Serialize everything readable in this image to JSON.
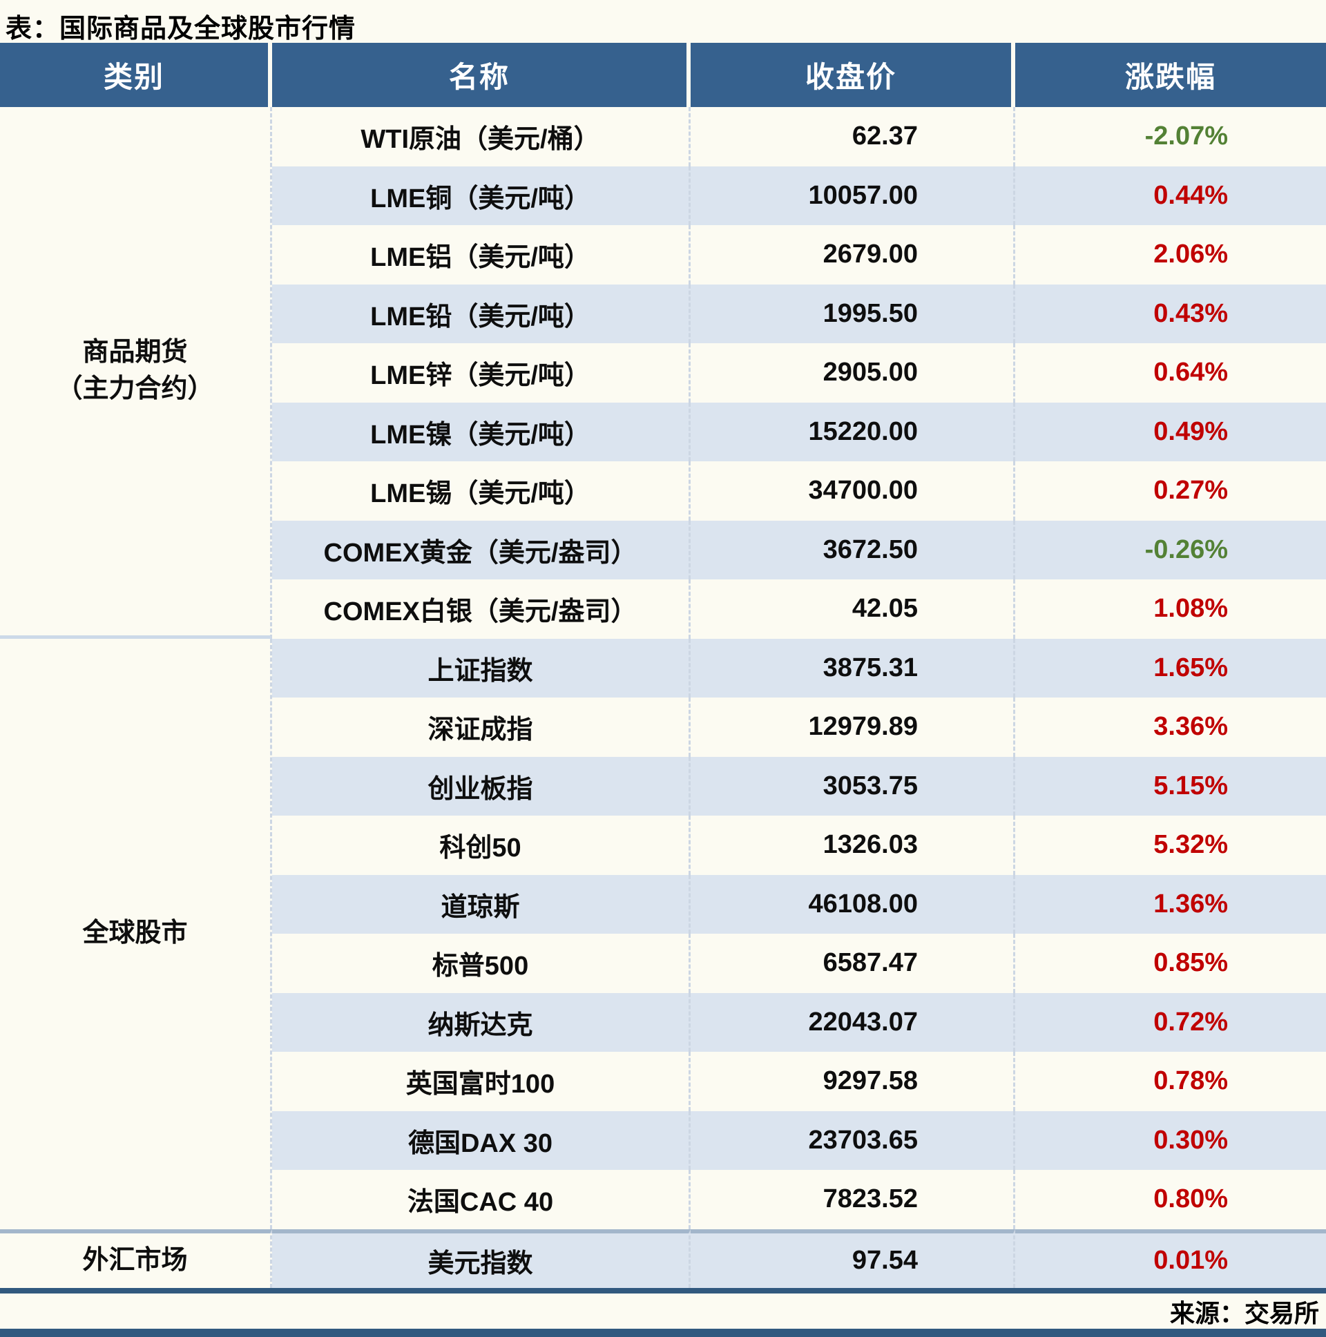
{
  "title": "表：国际商品及全球股市行情",
  "columns": [
    "类别",
    "名称",
    "收盘价",
    "涨跌幅"
  ],
  "sections": [
    {
      "label_lines": [
        "商品期货",
        "（主力合约）"
      ],
      "rows": [
        {
          "name": "WTI原油（美元/桶）",
          "close": "62.37",
          "change": "-2.07%",
          "dir": "down"
        },
        {
          "name": "LME铜（美元/吨）",
          "close": "10057.00",
          "change": "0.44%",
          "dir": "up"
        },
        {
          "name": "LME铝（美元/吨）",
          "close": "2679.00",
          "change": "2.06%",
          "dir": "up"
        },
        {
          "name": "LME铅（美元/吨）",
          "close": "1995.50",
          "change": "0.43%",
          "dir": "up"
        },
        {
          "name": "LME锌（美元/吨）",
          "close": "2905.00",
          "change": "0.64%",
          "dir": "up"
        },
        {
          "name": "LME镍（美元/吨）",
          "close": "15220.00",
          "change": "0.49%",
          "dir": "up"
        },
        {
          "name": "LME锡（美元/吨）",
          "close": "34700.00",
          "change": "0.27%",
          "dir": "up"
        },
        {
          "name": "COMEX黄金（美元/盎司）",
          "close": "3672.50",
          "change": "-0.26%",
          "dir": "down"
        },
        {
          "name": "COMEX白银（美元/盎司）",
          "close": "42.05",
          "change": "1.08%",
          "dir": "up"
        }
      ]
    },
    {
      "label_lines": [
        "全球股市"
      ],
      "rows": [
        {
          "name": "上证指数",
          "close": "3875.31",
          "change": "1.65%",
          "dir": "up"
        },
        {
          "name": "深证成指",
          "close": "12979.89",
          "change": "3.36%",
          "dir": "up"
        },
        {
          "name": "创业板指",
          "close": "3053.75",
          "change": "5.15%",
          "dir": "up"
        },
        {
          "name": "科创50",
          "close": "1326.03",
          "change": "5.32%",
          "dir": "up"
        },
        {
          "name": "道琼斯",
          "close": "46108.00",
          "change": "1.36%",
          "dir": "up"
        },
        {
          "name": "标普500",
          "close": "6587.47",
          "change": "0.85%",
          "dir": "up"
        },
        {
          "name": "纳斯达克",
          "close": "22043.07",
          "change": "0.72%",
          "dir": "up"
        },
        {
          "name": "英国富时100",
          "close": "9297.58",
          "change": "0.78%",
          "dir": "up"
        },
        {
          "name": "德国DAX 30",
          "close": "23703.65",
          "change": "0.30%",
          "dir": "up"
        },
        {
          "name": "法国CAC 40",
          "close": "7823.52",
          "change": "0.80%",
          "dir": "up"
        }
      ]
    },
    {
      "label_lines": [
        "外汇市场"
      ],
      "rows": [
        {
          "name": "美元指数",
          "close": "97.54",
          "change": "0.01%",
          "dir": "up"
        }
      ]
    }
  ],
  "footer": "来源：交易所",
  "colors": {
    "header_bg": "#36618E",
    "stripe": "#DBE4EF",
    "up_red": "#C00000",
    "down_green": "#538135",
    "border_navy": "#31597F",
    "section_divider": "#A3B6CB",
    "category_divider": "#CCD9E8",
    "page_bg": "#FCFBF2"
  },
  "chart_data": {
    "type": "table",
    "title": "表：国际商品及全球股市行情",
    "columns": [
      "类别",
      "名称",
      "收盘价",
      "涨跌幅(%)"
    ],
    "rows": [
      [
        "商品期货（主力合约）",
        "WTI原油（美元/桶）",
        62.37,
        -2.07
      ],
      [
        "商品期货（主力合约）",
        "LME铜（美元/吨）",
        10057.0,
        0.44
      ],
      [
        "商品期货（主力合约）",
        "LME铝（美元/吨）",
        2679.0,
        2.06
      ],
      [
        "商品期货（主力合约）",
        "LME铅（美元/吨）",
        1995.5,
        0.43
      ],
      [
        "商品期货（主力合约）",
        "LME锌（美元/吨）",
        2905.0,
        0.64
      ],
      [
        "商品期货（主力合约）",
        "LME镍（美元/吨）",
        15220.0,
        0.49
      ],
      [
        "商品期货（主力合约）",
        "LME锡（美元/吨）",
        34700.0,
        0.27
      ],
      [
        "商品期货（主力合约）",
        "COMEX黄金（美元/盎司）",
        3672.5,
        -0.26
      ],
      [
        "商品期货（主力合约）",
        "COMEX白银（美元/盎司）",
        42.05,
        1.08
      ],
      [
        "全球股市",
        "上证指数",
        3875.31,
        1.65
      ],
      [
        "全球股市",
        "深证成指",
        12979.89,
        3.36
      ],
      [
        "全球股市",
        "创业板指",
        3053.75,
        5.15
      ],
      [
        "全球股市",
        "科创50",
        1326.03,
        5.32
      ],
      [
        "全球股市",
        "道琼斯",
        46108.0,
        1.36
      ],
      [
        "全球股市",
        "标普500",
        6587.47,
        0.85
      ],
      [
        "全球股市",
        "纳斯达克",
        22043.07,
        0.72
      ],
      [
        "全球股市",
        "英国富时100",
        9297.58,
        0.78
      ],
      [
        "全球股市",
        "德国DAX 30",
        23703.65,
        0.3
      ],
      [
        "全球股市",
        "法国CAC 40",
        7823.52,
        0.8
      ],
      [
        "外汇市场",
        "美元指数",
        97.54,
        0.01
      ]
    ]
  }
}
